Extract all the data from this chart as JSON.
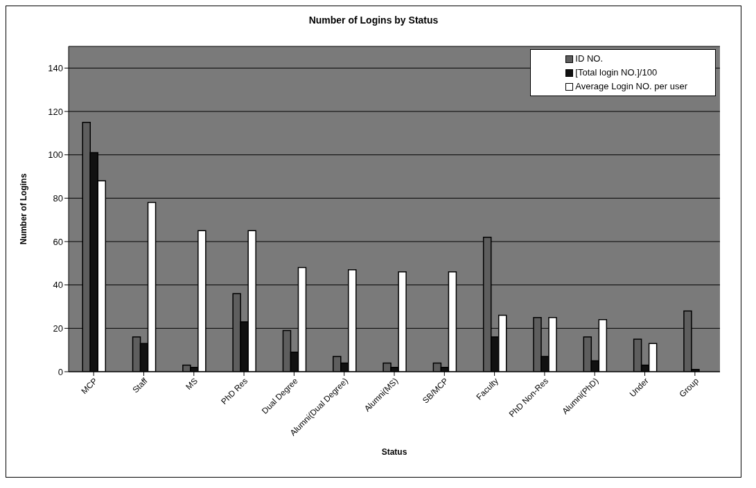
{
  "chart_data": {
    "type": "bar",
    "title": "Number of Logins by Status",
    "xlabel": "Status",
    "ylabel": "Number of Logins",
    "categories": [
      "MCP",
      "Staff",
      "MS",
      "PhD Res",
      "Dual Degree",
      "Alumni(Dual Degree)",
      "Alumni(MS)",
      "SB/MCP",
      "Faculty",
      "PhD Non-Res",
      "Alumni(PhD)",
      "Under",
      "Group"
    ],
    "series": [
      {
        "name": "ID NO.",
        "color": "#5e5e5e",
        "values": [
          115,
          16,
          3,
          36,
          19,
          7,
          4,
          4,
          62,
          25,
          16,
          15,
          28
        ]
      },
      {
        "name": "[Total login NO.]/100",
        "color": "#111111",
        "values": [
          101,
          13,
          2,
          23,
          9,
          4,
          2,
          2,
          16,
          7,
          5,
          3,
          1
        ]
      },
      {
        "name": "Average Login NO. per user",
        "color": "#ffffff",
        "values": [
          88,
          78,
          65,
          65,
          48,
          47,
          46,
          46,
          26,
          25,
          24,
          13,
          0
        ]
      }
    ],
    "ylim": [
      0,
      150
    ],
    "yticks": [
      0,
      20,
      40,
      60,
      80,
      100,
      120,
      140
    ],
    "grid": "y",
    "legend": "top right"
  }
}
